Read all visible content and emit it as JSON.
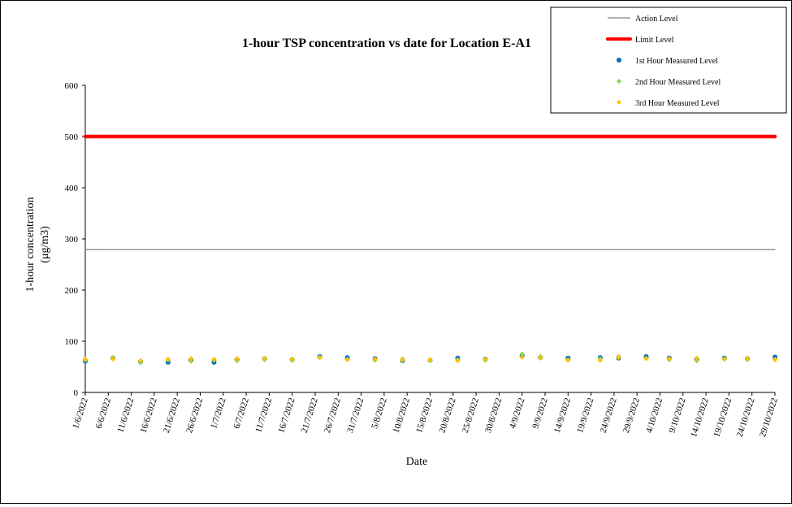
{
  "chart_data": {
    "type": "scatter",
    "title": "1-hour TSP concentration vs date for Location E-A1",
    "xlabel": "Date",
    "ylabel": "1-hour concentration",
    "ylabel_unit": "(μg/m3)",
    "ylim": [
      0,
      600
    ],
    "y_ticks": [
      0,
      100,
      200,
      300,
      400,
      500,
      600
    ],
    "x_range": [
      "1/6/2022",
      "29/10/2022"
    ],
    "x_tick_labels": [
      "1/6/2022",
      "6/6/2022",
      "11/6/2022",
      "16/6/2022",
      "21/6/2022",
      "26/6/2022",
      "1/7/2022",
      "6/7/2022",
      "11/7/2022",
      "16/7/2022",
      "21/7/2022",
      "26/7/2022",
      "31/7/2022",
      "5/8/2022",
      "10/8/2022",
      "15/8/2022",
      "20/8/2022",
      "25/8/2022",
      "30/8/2022",
      "4/9/2022",
      "9/9/2022",
      "14/9/2022",
      "19/9/2022",
      "24/9/2022",
      "29/9/2022",
      "4/10/2022",
      "9/10/2022",
      "14/10/2022",
      "19/10/2022",
      "24/10/2022",
      "29/10/2022"
    ],
    "grid": false,
    "legend_position": "top-right",
    "reference_lines": [
      {
        "name": "Action Level",
        "value": 279,
        "color": "#808080"
      },
      {
        "name": "Limit Level",
        "value": 500,
        "color": "#ff0000"
      }
    ],
    "series": [
      {
        "name": "1st Hour Measured Level",
        "color": "#0070c0",
        "marker": "circle",
        "x": [
          "1/6/2022",
          "7/6/2022",
          "13/6/2022",
          "19/6/2022",
          "24/6/2022",
          "29/6/2022",
          "4/7/2022",
          "10/7/2022",
          "16/7/2022",
          "22/7/2022",
          "28/7/2022",
          "3/8/2022",
          "9/8/2022",
          "15/8/2022",
          "21/8/2022",
          "27/8/2022",
          "4/9/2022",
          "8/9/2022",
          "14/9/2022",
          "21/9/2022",
          "25/9/2022",
          "1/10/2022",
          "6/10/2022",
          "12/10/2022",
          "18/10/2022",
          "23/10/2022",
          "29/10/2022"
        ],
        "values": [
          61,
          67,
          60,
          59,
          63,
          59,
          64,
          66,
          64,
          70,
          68,
          66,
          62,
          63,
          67,
          65,
          72,
          68,
          67,
          68,
          67,
          70,
          67,
          65,
          67,
          66,
          69
        ]
      },
      {
        "name": "2nd Hour Measured Level",
        "color": "#92d050",
        "marker": "diamond",
        "x": [
          "1/6/2022",
          "7/6/2022",
          "13/6/2022",
          "19/6/2022",
          "24/6/2022",
          "29/6/2022",
          "4/7/2022",
          "10/7/2022",
          "16/7/2022",
          "22/7/2022",
          "28/7/2022",
          "3/8/2022",
          "9/8/2022",
          "15/8/2022",
          "21/8/2022",
          "27/8/2022",
          "4/9/2022",
          "8/9/2022",
          "14/9/2022",
          "21/9/2022",
          "25/9/2022",
          "1/10/2022",
          "6/10/2022",
          "12/10/2022",
          "18/10/2022",
          "23/10/2022",
          "29/10/2022"
        ],
        "values": [
          63,
          68,
          58,
          63,
          61,
          63,
          62,
          64,
          63,
          69,
          65,
          63,
          65,
          62,
          64,
          63,
          75,
          70,
          64,
          66,
          70,
          67,
          64,
          62,
          65,
          64,
          65
        ]
      },
      {
        "name": "3rd Hour Measured Level",
        "color": "#ffc000",
        "marker": "diamond",
        "x": [
          "1/6/2022",
          "7/6/2022",
          "13/6/2022",
          "19/6/2022",
          "24/6/2022",
          "29/6/2022",
          "4/7/2022",
          "10/7/2022",
          "16/7/2022",
          "22/7/2022",
          "28/7/2022",
          "3/8/2022",
          "9/8/2022",
          "15/8/2022",
          "21/8/2022",
          "27/8/2022",
          "4/9/2022",
          "8/9/2022",
          "14/9/2022",
          "21/9/2022",
          "25/9/2022",
          "1/10/2022",
          "6/10/2022",
          "12/10/2022",
          "18/10/2022",
          "23/10/2022",
          "29/10/2022"
        ],
        "values": [
          65,
          65,
          62,
          65,
          66,
          65,
          66,
          67,
          65,
          68,
          64,
          65,
          63,
          64,
          62,
          65,
          69,
          67,
          63,
          63,
          68,
          66,
          66,
          67,
          66,
          67,
          64
        ]
      }
    ]
  }
}
